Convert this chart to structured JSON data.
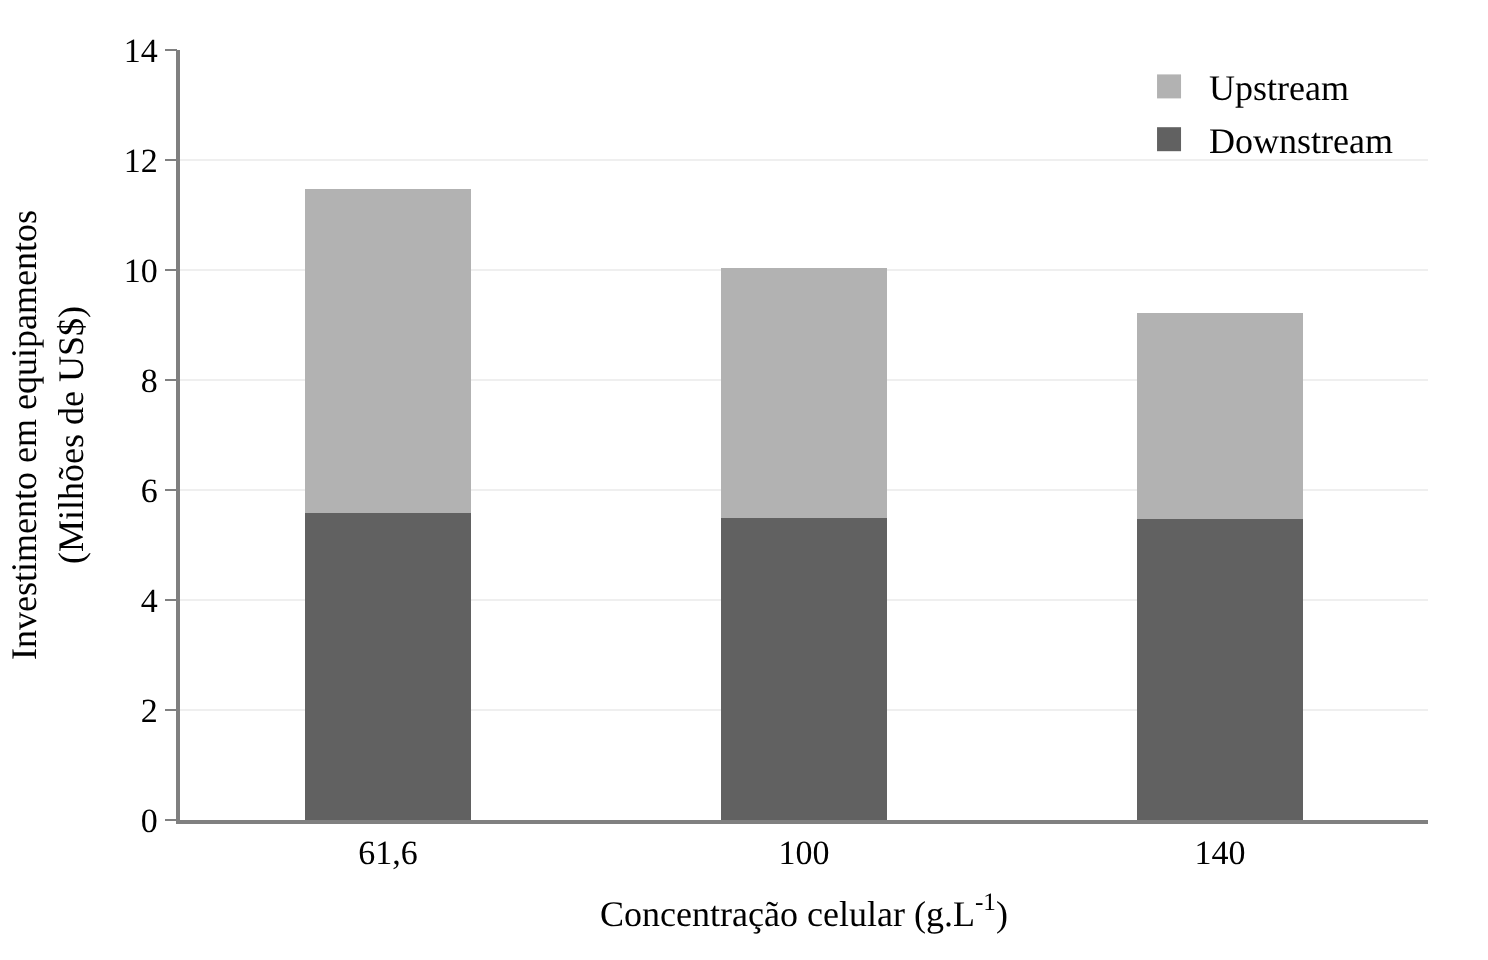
{
  "chart_data": {
    "type": "bar",
    "stacked": true,
    "xlabel": "Concentração celular (g.L$^{-1}$)",
    "ylabel": "Investimento em equipamentos\n(Milhões de US$)",
    "categories": [
      "61,6",
      "100",
      "140"
    ],
    "series": [
      {
        "name": "Downstream",
        "color": "#616161",
        "values": [
          5.59,
          5.5,
          5.47
        ]
      },
      {
        "name": "Upstream",
        "color": "#b2b2b2",
        "values": [
          5.88,
          4.53,
          3.74
        ]
      }
    ],
    "ylim": [
      0,
      14
    ],
    "yticks": [
      0,
      2,
      4,
      6,
      8,
      10,
      12,
      14
    ],
    "grid": "y",
    "legend": "top right"
  }
}
